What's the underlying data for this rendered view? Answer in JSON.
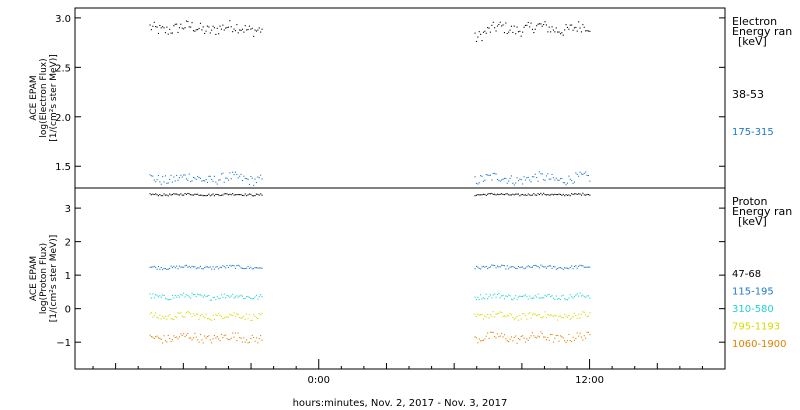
{
  "chart_data": [
    {
      "type": "scatter",
      "panel": "electron",
      "ylabel_lines": [
        "ACE EPAM",
        "log(Electron Flux)",
        "[1/(cm²s ster MeV)]"
      ],
      "legend_title": [
        "Electron",
        "Energy ran",
        "[keV]"
      ],
      "ylim": [
        1.28,
        3.1
      ],
      "yticks": [
        1.5,
        2.0,
        2.5,
        3.0
      ],
      "ytick_labels": [
        "1.5",
        "2.0",
        "2.5",
        "3.0"
      ],
      "x_segments_hours": [
        [
          -7.5,
          -2.5
        ],
        [
          6.9,
          12.0
        ]
      ],
      "series": [
        {
          "name": "38-53",
          "color": "#000000",
          "level": 2.9,
          "spread": 0.06
        },
        {
          "name": "175-315",
          "color": "#1f78c8",
          "level": 1.38,
          "spread": 0.05
        }
      ]
    },
    {
      "type": "scatter",
      "panel": "proton",
      "ylabel_lines": [
        "ACE EPAM",
        "log(Proton Flux)",
        "[1/(cm²s ster MeV)]"
      ],
      "legend_title": [
        "Proton",
        "Energy ran",
        "[keV]"
      ],
      "ylim": [
        -1.8,
        3.6
      ],
      "yticks": [
        -1,
        0,
        1,
        2,
        3
      ],
      "ytick_labels": [
        "−1",
        "0",
        "1",
        "2",
        "3"
      ],
      "x_segments_hours": [
        [
          -7.5,
          -2.5
        ],
        [
          6.9,
          12.0
        ]
      ],
      "series": [
        {
          "name": "47-68",
          "color": "#000000",
          "level": 3.42,
          "spread": 0.03
        },
        {
          "name": "115-195",
          "color": "#1f78c8",
          "level": 1.25,
          "spread": 0.05
        },
        {
          "name": "310-580",
          "color": "#22d3d3",
          "level": 0.38,
          "spread": 0.08
        },
        {
          "name": "795-1193",
          "color": "#d8d800",
          "level": -0.2,
          "spread": 0.1
        },
        {
          "name": "1060-1900",
          "color": "#e08000",
          "level": -0.85,
          "spread": 0.13
        }
      ]
    }
  ],
  "x_axis": {
    "xlim_hours": [
      -10.8,
      18.0
    ],
    "tick_labels": [
      {
        "hour": 0,
        "label": "0:00"
      },
      {
        "hour": 12,
        "label": "12:00"
      }
    ],
    "xlabel": "hours:minutes, Nov.  2, 2017 - Nov.  3, 2017"
  }
}
